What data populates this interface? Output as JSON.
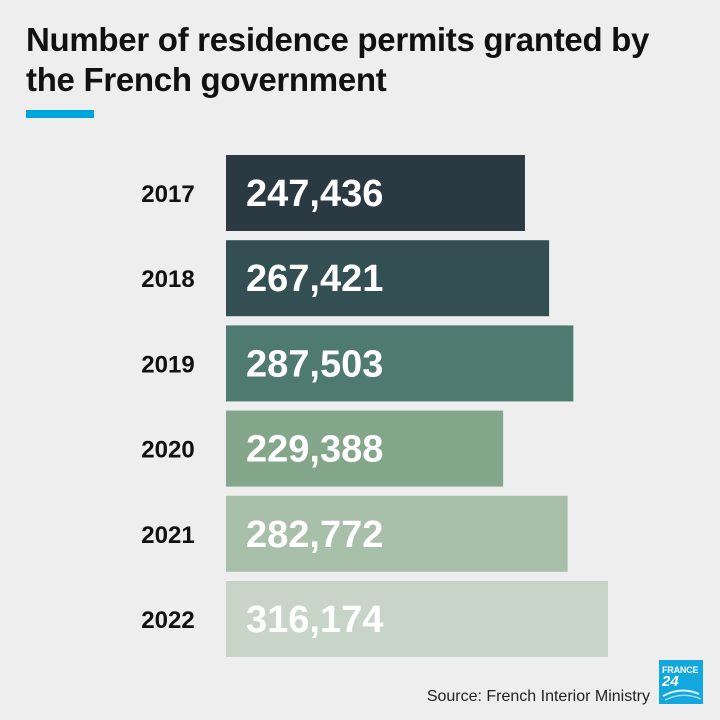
{
  "header": {
    "title": "Number of residence permits granted by the French government"
  },
  "footer": {
    "source": "Source: French Interior Ministry",
    "logo_line1": "FRANCE",
    "logo_line2": "24"
  },
  "colors": {
    "background": "#eeeeee",
    "accent": "#00a5e0",
    "bars": [
      "#2b3942",
      "#344f54",
      "#4f7a6f",
      "#84a68b",
      "#a8bfa9",
      "#c9d4c9"
    ]
  },
  "chart_data": {
    "type": "bar",
    "orientation": "horizontal",
    "title": "Number of residence permits granted by the French government",
    "xlabel": "",
    "ylabel": "",
    "categories": [
      "2017",
      "2018",
      "2019",
      "2020",
      "2021",
      "2022"
    ],
    "values": [
      247436,
      267421,
      287503,
      229388,
      282772,
      316174
    ],
    "value_labels": [
      "247,436",
      "267,421",
      "287,503",
      "229,388",
      "282,772",
      "316,174"
    ],
    "grid": false,
    "legend": "none"
  }
}
